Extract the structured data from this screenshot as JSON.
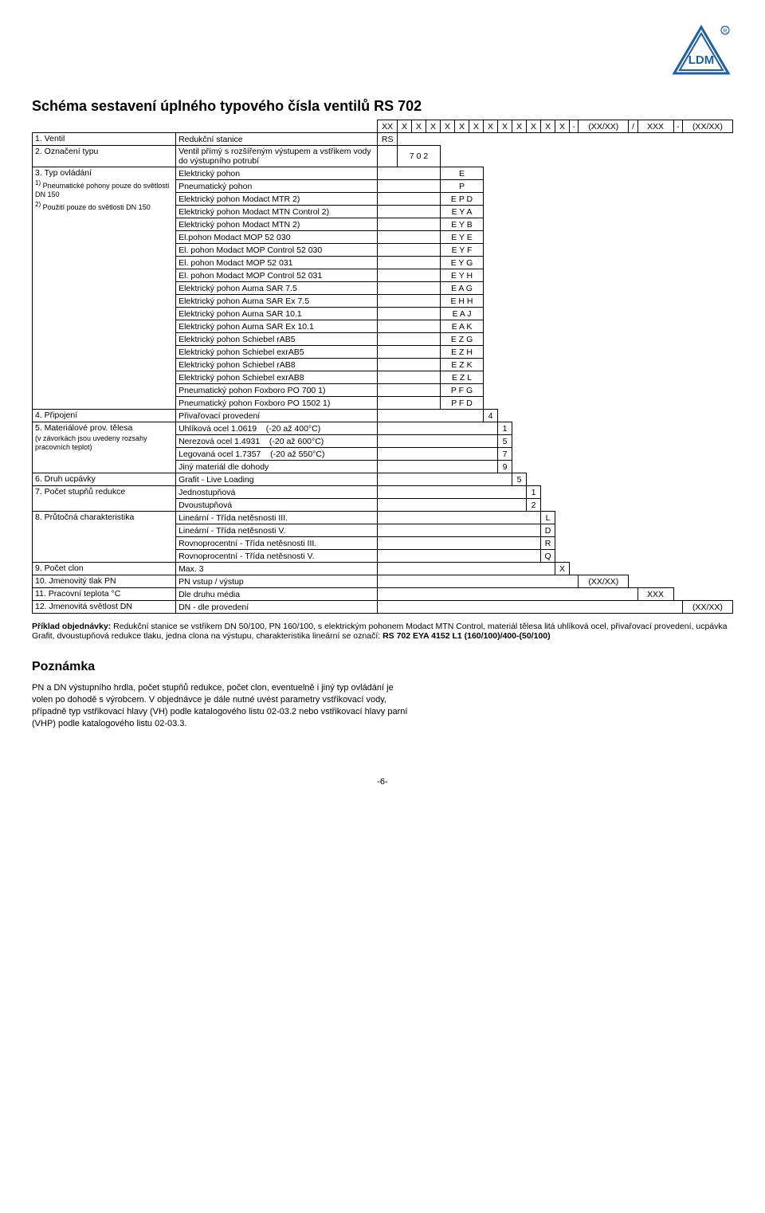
{
  "logo_text": "LDM",
  "logo_color": "#1e5fa8",
  "title": "Schéma sestavení úplného typového čísla ventilů RS 702",
  "header_code": "XX X X X  X X X  X X X X  X X  - (XX/XX) / XXX  - (XX/XX)",
  "rows": {
    "r1_label": "1. Ventil",
    "r1_desc": "Redukční stanice",
    "r1_code": "RS",
    "r2_label": "2. Označení typu",
    "r2_desc": "Ventil přímý s rozšířeným výstupem a vstřikem vody do výstupního potrubí",
    "r2_code": "7 0 2",
    "r3_label": "3. Typ ovládání",
    "r3_note1": "1) Pneumatické pohony pouze do světlosti DN 150",
    "r3_note2": "2) Použití pouze do světlosti DN 150",
    "drives": [
      {
        "desc": "Elektrický pohon",
        "code": "E"
      },
      {
        "desc": "Pneumatický pohon",
        "code": "P"
      },
      {
        "desc": "Elektrický pohon Modact MTR 2)",
        "code": "E P D"
      },
      {
        "desc": "Elektrický pohon Modact MTN Control 2)",
        "code": "E Y A"
      },
      {
        "desc": "Elektrický pohon Modact MTN 2)",
        "code": "E Y B"
      },
      {
        "desc": "El.pohon Modact MOP 52 030",
        "code": "E Y E"
      },
      {
        "desc": "El. pohon Modact MOP Control 52 030",
        "code": "E Y F"
      },
      {
        "desc": "El. pohon Modact MOP 52 031",
        "code": "E Y G"
      },
      {
        "desc": "El. pohon Modact MOP Control 52 031",
        "code": "E Y H"
      },
      {
        "desc": "Elektrický pohon Auma SAR 7.5",
        "code": "E A G"
      },
      {
        "desc": "Elektrický pohon Auma SAR Ex 7.5",
        "code": "E H H"
      },
      {
        "desc": "Elektrický pohon Auma SAR 10.1",
        "code": "E A J"
      },
      {
        "desc": "Elektrický pohon Auma SAR Ex 10.1",
        "code": "E A K"
      },
      {
        "desc": "Elektrický pohon Schiebel rAB5",
        "code": "E Z G"
      },
      {
        "desc": "Elektrický pohon Schiebel exrAB5",
        "code": "E Z H"
      },
      {
        "desc": "Elektrický pohon Schiebel rAB8",
        "code": "E Z K"
      },
      {
        "desc": "Elektrický pohon Schiebel exrAB8",
        "code": "E Z L"
      },
      {
        "desc": "Pneumatický pohon Foxboro PO 700 1)",
        "code": "P F G"
      },
      {
        "desc": "Pneumatický pohon Foxboro PO 1502 1)",
        "code": "P F D"
      }
    ],
    "r4_label": "4. Připojení",
    "r4_desc": "Přivařovací provedení",
    "r4_code": "4",
    "r5_label": "5. Materiálové prov. tělesa",
    "r5_note": "(v závorkách jsou uvedeny rozsahy pracovních teplot)",
    "materials": [
      {
        "desc": "Uhlíková ocel 1.0619",
        "temp": "(-20 až 400°C)",
        "code": "1"
      },
      {
        "desc": "Nerezová ocel 1.4931",
        "temp": "(-20 až 600°C)",
        "code": "5"
      },
      {
        "desc": "Legovaná ocel 1.7357",
        "temp": "(-20 až 550°C)",
        "code": "7"
      },
      {
        "desc": "Jiný materiál dle dohody",
        "temp": "",
        "code": "9"
      }
    ],
    "r6_label": "6. Druh ucpávky",
    "r6_desc": "Grafit - Live Loading",
    "r6_code": "5",
    "r7_label": "7. Počet stupňů redukce",
    "r7a_desc": "Jednostupňová",
    "r7a_code": "1",
    "r7b_desc": "Dvoustupňová",
    "r7b_code": "2",
    "r8_label": "8. Průtočná charakteristika",
    "r8_items": [
      {
        "desc": "Lineární - Třída netěsnosti III.",
        "code": "L"
      },
      {
        "desc": "Lineární - Třída netěsnosti V.",
        "code": "D"
      },
      {
        "desc": "Rovnoprocentní - Třída netěsnosti III.",
        "code": "R"
      },
      {
        "desc": "Rovnoprocentní - Třída netěsnosti V.",
        "code": "Q"
      }
    ],
    "r9_label": "9. Počet clon",
    "r9_desc": "Max. 3",
    "r9_code": "X",
    "r10_label": "10. Jmenovitý tlak PN",
    "r10_desc": "PN vstup / výstup",
    "r10_code": "(XX/XX)",
    "r11_label": "11. Pracovní teplota °C",
    "r11_desc": "Dle druhu média",
    "r11_code": "XXX",
    "r12_label": "12. Jmenovitá světlost DN",
    "r12_desc": "DN - dle provedení",
    "r12_code": "(XX/XX)"
  },
  "example_label": "Příklad objednávky:",
  "example_text": "Redukční stanice se vstřikem DN 50/100, PN 160/100, s elektrickým pohonem Modact MTN Control, materiál tělesa litá uhlíková ocel, přivařovací provedení, ucpávka Grafit, dvoustupňová redukce tlaku, jedna clona na výstupu, charakteristika lineární se označí: ",
  "example_bold": "RS 702 EYA 4152 L1 (160/100)/400-(50/100)",
  "note_h": "Poznámka",
  "note_p": "PN a DN výstupního hrdla, počet stupňů redukce, počet clon, eventuelně i jiný typ ovládání je volen po dohodě s výrobcem. V objednávce je dále nutné uvést parametry vstřikovací vody, případně typ vstřikovací hlavy (VH) podle katalogového listu 02-03.2 nebo vstřikovací hlavy parní (VHP) podle katalogového listu 02-03.3.",
  "footer": "-6-",
  "colwidths": {
    "label": 160,
    "desc": 225,
    "c1": 22,
    "c2": 16,
    "c3": 16,
    "c4": 16,
    "c5": 16,
    "c6": 16,
    "c7": 16,
    "c8": 16,
    "c9": 16,
    "c10": 16,
    "c11": 16,
    "c12": 16,
    "c13": 16,
    "dash1": 10,
    "pn": 56,
    "slash": 10,
    "temp": 40,
    "dash2": 10,
    "dn": 56
  }
}
